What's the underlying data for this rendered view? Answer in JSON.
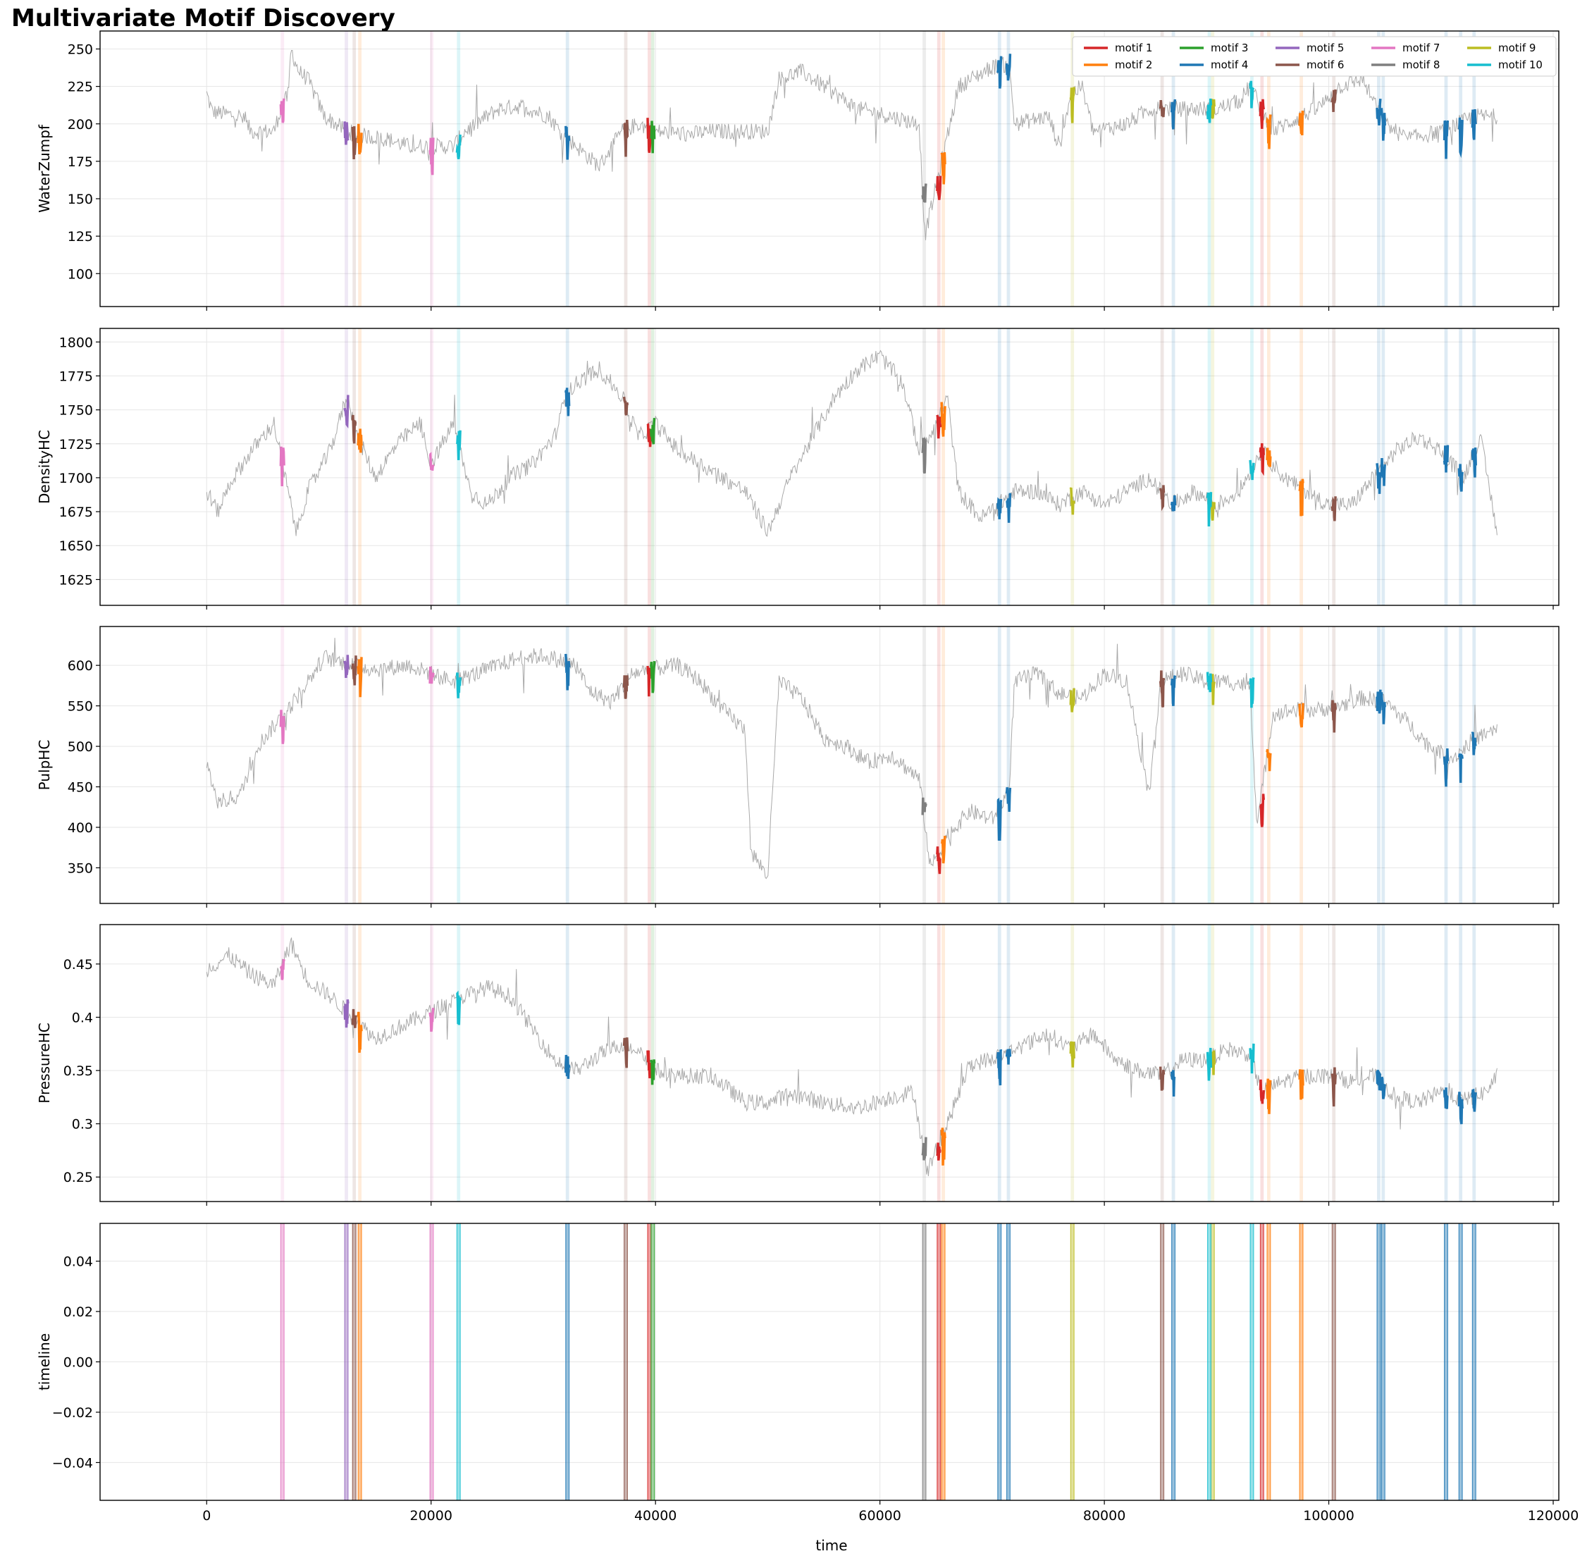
{
  "title": "Multivariate Motif Discovery",
  "chart_data": {
    "type": "line",
    "xlabel": "time",
    "xlim": [
      -9500,
      120500
    ],
    "xticks": [
      0,
      20000,
      40000,
      60000,
      80000,
      100000,
      120000
    ],
    "grid": true,
    "legend_position": "top-right",
    "motifs": [
      {
        "name": "motif 1",
        "color": "#d62728",
        "positions": [
          39300,
          65100,
          93900
        ]
      },
      {
        "name": "motif 2",
        "color": "#ff7f0e",
        "positions": [
          13500,
          65500,
          94500,
          97400
        ]
      },
      {
        "name": "motif 3",
        "color": "#2ca02c",
        "positions": [
          39600
        ]
      },
      {
        "name": "motif 4",
        "color": "#1f77b4",
        "positions": [
          32000,
          70500,
          71300,
          86000,
          104300,
          104700,
          110300,
          111600,
          112800
        ]
      },
      {
        "name": "motif 5",
        "color": "#9467bd",
        "positions": [
          12300
        ]
      },
      {
        "name": "motif 6",
        "color": "#8c564b",
        "positions": [
          13000,
          37200,
          85000,
          100300
        ]
      },
      {
        "name": "motif 7",
        "color": "#e377c2",
        "positions": [
          6600,
          19900
        ]
      },
      {
        "name": "motif 8",
        "color": "#7f7f7f",
        "positions": [
          63800
        ]
      },
      {
        "name": "motif 9",
        "color": "#bcbd22",
        "positions": [
          77000,
          89500
        ]
      },
      {
        "name": "motif 10",
        "color": "#17becf",
        "positions": [
          22300,
          89200,
          93000
        ]
      }
    ],
    "panels": [
      {
        "ylabel": "WaterZumpf",
        "ylim": [
          78,
          262
        ],
        "yticks": [
          100,
          125,
          150,
          175,
          200,
          225,
          250
        ],
        "anchors": [
          [
            0,
            220
          ],
          [
            500,
            208
          ],
          [
            3000,
            205
          ],
          [
            4000,
            195
          ],
          [
            6000,
            195
          ],
          [
            6600,
            210
          ],
          [
            7300,
            220
          ],
          [
            7500,
            250
          ],
          [
            8200,
            235
          ],
          [
            9000,
            230
          ],
          [
            10500,
            205
          ],
          [
            12500,
            195
          ],
          [
            14000,
            192
          ],
          [
            16000,
            190
          ],
          [
            18000,
            185
          ],
          [
            22000,
            185
          ],
          [
            23000,
            195
          ],
          [
            25000,
            205
          ],
          [
            26000,
            210
          ],
          [
            28000,
            212
          ],
          [
            30500,
            205
          ],
          [
            31500,
            195
          ],
          [
            34000,
            178
          ],
          [
            35000,
            172
          ],
          [
            37000,
            195
          ],
          [
            38500,
            200
          ],
          [
            40000,
            195
          ],
          [
            43000,
            193
          ],
          [
            45000,
            195
          ],
          [
            50000,
            195
          ],
          [
            51000,
            230
          ],
          [
            53000,
            235
          ],
          [
            56000,
            220
          ],
          [
            58000,
            210
          ],
          [
            61000,
            205
          ],
          [
            63500,
            200
          ],
          [
            64000,
            125
          ],
          [
            65800,
            185
          ],
          [
            67000,
            225
          ],
          [
            70000,
            238
          ],
          [
            71500,
            240
          ],
          [
            72000,
            200
          ],
          [
            75000,
            205
          ],
          [
            76000,
            185
          ],
          [
            77000,
            220
          ],
          [
            78000,
            225
          ],
          [
            79000,
            195
          ],
          [
            82000,
            200
          ],
          [
            84000,
            210
          ],
          [
            86000,
            210
          ],
          [
            88000,
            210
          ],
          [
            90000,
            210
          ],
          [
            92000,
            215
          ],
          [
            93000,
            225
          ],
          [
            95000,
            195
          ],
          [
            97500,
            205
          ],
          [
            99000,
            210
          ],
          [
            101000,
            225
          ],
          [
            103000,
            230
          ],
          [
            105000,
            200
          ],
          [
            107000,
            190
          ],
          [
            110000,
            195
          ],
          [
            113000,
            205
          ],
          [
            115000,
            205
          ]
        ]
      },
      {
        "ylabel": "DensityHC",
        "ylim": [
          1606,
          1810
        ],
        "yticks": [
          1625,
          1650,
          1675,
          1700,
          1725,
          1750,
          1775,
          1800
        ],
        "anchors": [
          [
            0,
            1690
          ],
          [
            1000,
            1675
          ],
          [
            2000,
            1695
          ],
          [
            4000,
            1720
          ],
          [
            6000,
            1740
          ],
          [
            7000,
            1700
          ],
          [
            8000,
            1660
          ],
          [
            9000,
            1690
          ],
          [
            11000,
            1720
          ],
          [
            12500,
            1760
          ],
          [
            13500,
            1730
          ],
          [
            15000,
            1700
          ],
          [
            17000,
            1725
          ],
          [
            19000,
            1740
          ],
          [
            20000,
            1710
          ],
          [
            22000,
            1740
          ],
          [
            23500,
            1690
          ],
          [
            25000,
            1680
          ],
          [
            27000,
            1700
          ],
          [
            29000,
            1710
          ],
          [
            31000,
            1730
          ],
          [
            32000,
            1760
          ],
          [
            33000,
            1770
          ],
          [
            35000,
            1780
          ],
          [
            37000,
            1760
          ],
          [
            38500,
            1730
          ],
          [
            40000,
            1740
          ],
          [
            42000,
            1720
          ],
          [
            44000,
            1710
          ],
          [
            46000,
            1700
          ],
          [
            48000,
            1690
          ],
          [
            50000,
            1660
          ],
          [
            52000,
            1700
          ],
          [
            54000,
            1730
          ],
          [
            56000,
            1760
          ],
          [
            58000,
            1780
          ],
          [
            60000,
            1790
          ],
          [
            62000,
            1770
          ],
          [
            63500,
            1720
          ],
          [
            65000,
            1740
          ],
          [
            66000,
            1760
          ],
          [
            67000,
            1690
          ],
          [
            69000,
            1670
          ],
          [
            72000,
            1690
          ],
          [
            74000,
            1690
          ],
          [
            76000,
            1680
          ],
          [
            78000,
            1690
          ],
          [
            80000,
            1680
          ],
          [
            82000,
            1690
          ],
          [
            84000,
            1700
          ],
          [
            86000,
            1680
          ],
          [
            88000,
            1690
          ],
          [
            90000,
            1680
          ],
          [
            92000,
            1690
          ],
          [
            94000,
            1720
          ],
          [
            96000,
            1700
          ],
          [
            98000,
            1690
          ],
          [
            100000,
            1680
          ],
          [
            102000,
            1680
          ],
          [
            104000,
            1700
          ],
          [
            106000,
            1720
          ],
          [
            108000,
            1730
          ],
          [
            110000,
            1720
          ],
          [
            112000,
            1700
          ],
          [
            113500,
            1730
          ],
          [
            115000,
            1660
          ]
        ]
      },
      {
        "ylabel": "PulpHC",
        "ylim": [
          306,
          648
        ],
        "yticks": [
          350,
          400,
          450,
          500,
          550,
          600
        ],
        "anchors": [
          [
            0,
            480
          ],
          [
            1000,
            430
          ],
          [
            3000,
            440
          ],
          [
            4500,
            500
          ],
          [
            6000,
            525
          ],
          [
            7500,
            550
          ],
          [
            9000,
            580
          ],
          [
            10500,
            610
          ],
          [
            13000,
            600
          ],
          [
            15000,
            595
          ],
          [
            18000,
            600
          ],
          [
            20000,
            590
          ],
          [
            22000,
            580
          ],
          [
            24000,
            590
          ],
          [
            26000,
            600
          ],
          [
            28000,
            610
          ],
          [
            30000,
            612
          ],
          [
            33000,
            600
          ],
          [
            34000,
            570
          ],
          [
            36000,
            555
          ],
          [
            38000,
            590
          ],
          [
            39500,
            595
          ],
          [
            42000,
            600
          ],
          [
            44000,
            580
          ],
          [
            46000,
            545
          ],
          [
            48000,
            520
          ],
          [
            48500,
            370
          ],
          [
            50000,
            340
          ],
          [
            51000,
            580
          ],
          [
            53000,
            560
          ],
          [
            55000,
            510
          ],
          [
            57000,
            500
          ],
          [
            59000,
            480
          ],
          [
            61000,
            490
          ],
          [
            63500,
            460
          ],
          [
            64500,
            350
          ],
          [
            66000,
            390
          ],
          [
            68000,
            420
          ],
          [
            70000,
            410
          ],
          [
            71500,
            445
          ],
          [
            72000,
            580
          ],
          [
            74000,
            590
          ],
          [
            76000,
            565
          ],
          [
            78000,
            560
          ],
          [
            80000,
            590
          ],
          [
            82000,
            580
          ],
          [
            84000,
            440
          ],
          [
            85000,
            580
          ],
          [
            87000,
            590
          ],
          [
            89000,
            580
          ],
          [
            91000,
            580
          ],
          [
            93000,
            575
          ],
          [
            93600,
            400
          ],
          [
            95000,
            540
          ],
          [
            97000,
            545
          ],
          [
            99000,
            545
          ],
          [
            101000,
            550
          ],
          [
            103000,
            560
          ],
          [
            105000,
            555
          ],
          [
            107000,
            530
          ],
          [
            109000,
            500
          ],
          [
            111000,
            485
          ],
          [
            113000,
            510
          ],
          [
            115000,
            520
          ]
        ]
      },
      {
        "ylabel": "PressureHC",
        "ylim": [
          0.227,
          0.487
        ],
        "yticks": [
          0.25,
          0.3,
          0.35,
          0.4,
          0.45
        ],
        "anchors": [
          [
            0,
            0.445
          ],
          [
            2000,
            0.458
          ],
          [
            4000,
            0.44
          ],
          [
            6000,
            0.43
          ],
          [
            7500,
            0.47
          ],
          [
            9000,
            0.435
          ],
          [
            11000,
            0.42
          ],
          [
            13000,
            0.4
          ],
          [
            15000,
            0.38
          ],
          [
            17000,
            0.39
          ],
          [
            19000,
            0.4
          ],
          [
            21000,
            0.41
          ],
          [
            23000,
            0.42
          ],
          [
            25000,
            0.428
          ],
          [
            27000,
            0.42
          ],
          [
            29000,
            0.39
          ],
          [
            31000,
            0.36
          ],
          [
            33000,
            0.35
          ],
          [
            35000,
            0.365
          ],
          [
            37000,
            0.375
          ],
          [
            38500,
            0.37
          ],
          [
            40000,
            0.35
          ],
          [
            42000,
            0.345
          ],
          [
            45000,
            0.345
          ],
          [
            48000,
            0.32
          ],
          [
            50000,
            0.32
          ],
          [
            52000,
            0.328
          ],
          [
            55000,
            0.32
          ],
          [
            58000,
            0.315
          ],
          [
            61000,
            0.325
          ],
          [
            63000,
            0.33
          ],
          [
            64200,
            0.255
          ],
          [
            66000,
            0.3
          ],
          [
            68000,
            0.355
          ],
          [
            71000,
            0.365
          ],
          [
            73000,
            0.375
          ],
          [
            75000,
            0.385
          ],
          [
            77000,
            0.37
          ],
          [
            79000,
            0.385
          ],
          [
            81000,
            0.36
          ],
          [
            83000,
            0.35
          ],
          [
            85000,
            0.345
          ],
          [
            87000,
            0.36
          ],
          [
            89000,
            0.36
          ],
          [
            91000,
            0.37
          ],
          [
            93000,
            0.365
          ],
          [
            94000,
            0.33
          ],
          [
            96000,
            0.34
          ],
          [
            98000,
            0.345
          ],
          [
            100000,
            0.345
          ],
          [
            102000,
            0.34
          ],
          [
            104000,
            0.345
          ],
          [
            106000,
            0.325
          ],
          [
            108000,
            0.32
          ],
          [
            110000,
            0.33
          ],
          [
            112000,
            0.322
          ],
          [
            114000,
            0.33
          ],
          [
            115000,
            0.345
          ]
        ]
      },
      {
        "ylabel": "timeline",
        "ylim": [
          -0.055,
          0.055
        ],
        "yticks": [
          -0.04,
          -0.02,
          0.0,
          0.02,
          0.04
        ],
        "ytick_labels": [
          "−0.04",
          "−0.02",
          "0.00",
          "0.02",
          "0.04"
        ],
        "anchors": []
      }
    ]
  }
}
